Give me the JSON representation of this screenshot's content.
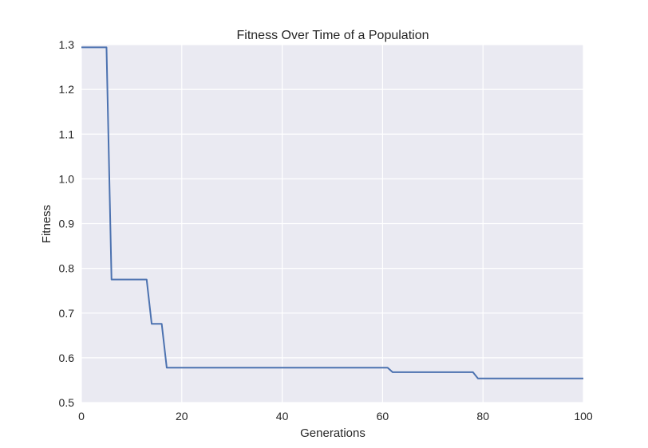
{
  "chart_data": {
    "type": "line",
    "title": "Fitness Over Time of a Population",
    "xlabel": "Generations",
    "ylabel": "Fitness",
    "xlim": [
      0,
      100
    ],
    "ylim": [
      0.5,
      1.3
    ],
    "x_ticks": [
      "0",
      "20",
      "40",
      "60",
      "80",
      "100"
    ],
    "y_ticks": [
      "0.5",
      "0.6",
      "0.7",
      "0.8",
      "0.9",
      "1.0",
      "1.1",
      "1.2",
      "1.3"
    ],
    "grid": true,
    "colors": {
      "background": "#eaeaf2",
      "grid": "#ffffff",
      "line": "#4c72b0"
    },
    "series": [
      {
        "x": [
          0,
          5,
          6,
          13,
          14,
          16,
          17,
          61,
          62,
          78,
          79,
          100
        ],
        "values": [
          1.294,
          1.294,
          0.775,
          0.775,
          0.676,
          0.676,
          0.578,
          0.578,
          0.568,
          0.568,
          0.554,
          0.554
        ]
      }
    ]
  }
}
